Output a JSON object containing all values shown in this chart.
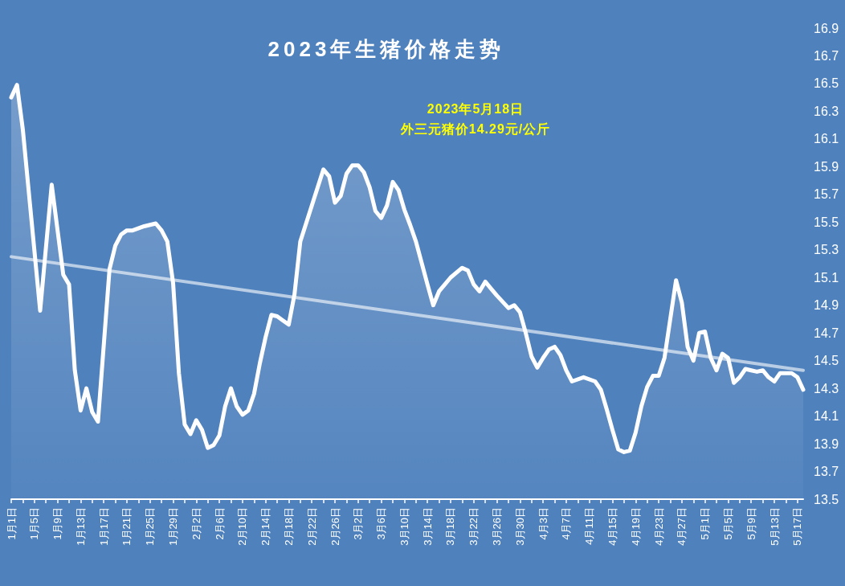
{
  "chart_data": {
    "type": "area",
    "title": "2023年生猪价格走势",
    "annotations": [
      "2023年5月18日",
      "外三元猪价14.29元/公斤"
    ],
    "series": [
      {
        "color": "#ffffff",
        "x": [
          "2023-01-01",
          "2023-01-02",
          "2023-01-03",
          "2023-01-06",
          "2023-01-08",
          "2023-01-10",
          "2023-01-11",
          "2023-01-12",
          "2023-01-13",
          "2023-01-14",
          "2023-01-15",
          "2023-01-16",
          "2023-01-18",
          "2023-01-19",
          "2023-01-20",
          "2023-01-21",
          "2023-01-22",
          "2023-01-24",
          "2023-01-26",
          "2023-01-27",
          "2023-01-28",
          "2023-01-29",
          "2023-01-30",
          "2023-01-31",
          "2023-02-01",
          "2023-02-02",
          "2023-02-03",
          "2023-02-04",
          "2023-02-05",
          "2023-02-06",
          "2023-02-07",
          "2023-02-08",
          "2023-02-09",
          "2023-02-10",
          "2023-02-11",
          "2023-02-12",
          "2023-02-13",
          "2023-02-14",
          "2023-02-15",
          "2023-02-16",
          "2023-02-17",
          "2023-02-18",
          "2023-02-19",
          "2023-02-20",
          "2023-02-24",
          "2023-02-25",
          "2023-02-26",
          "2023-02-27",
          "2023-02-28",
          "2023-03-01",
          "2023-03-02",
          "2023-03-03",
          "2023-03-04",
          "2023-03-05",
          "2023-03-06",
          "2023-03-07",
          "2023-03-08",
          "2023-03-09",
          "2023-03-10",
          "2023-03-11",
          "2023-03-12",
          "2023-03-14",
          "2023-03-15",
          "2023-03-16",
          "2023-03-17",
          "2023-03-18",
          "2023-03-20",
          "2023-03-21",
          "2023-03-22",
          "2023-03-23",
          "2023-03-24",
          "2023-03-25",
          "2023-03-26",
          "2023-03-28",
          "2023-03-29",
          "2023-03-30",
          "2023-03-31",
          "2023-04-01",
          "2023-04-02",
          "2023-04-03",
          "2023-04-04",
          "2023-04-05",
          "2023-04-06",
          "2023-04-07",
          "2023-04-08",
          "2023-04-10",
          "2023-04-12",
          "2023-04-13",
          "2023-04-14",
          "2023-04-15",
          "2023-04-16",
          "2023-04-17",
          "2023-04-18",
          "2023-04-19",
          "2023-04-20",
          "2023-04-21",
          "2023-04-22",
          "2023-04-23",
          "2023-04-24",
          "2023-04-25",
          "2023-04-26",
          "2023-04-27",
          "2023-04-28",
          "2023-04-29",
          "2023-04-30",
          "2023-05-01",
          "2023-05-02",
          "2023-05-03",
          "2023-05-04",
          "2023-05-05",
          "2023-05-06",
          "2023-05-07",
          "2023-05-08",
          "2023-05-09",
          "2023-05-10",
          "2023-05-11",
          "2023-05-12",
          "2023-05-13",
          "2023-05-14",
          "2023-05-15",
          "2023-05-16",
          "2023-05-17",
          "2023-05-18"
        ],
        "values": [
          16.4,
          16.49,
          16.17,
          14.86,
          15.77,
          15.12,
          15.05,
          14.43,
          14.14,
          14.3,
          14.13,
          14.06,
          15.16,
          15.33,
          15.41,
          15.44,
          15.44,
          15.47,
          15.49,
          15.44,
          15.36,
          15.06,
          14.41,
          14.04,
          13.97,
          14.07,
          14.0,
          13.87,
          13.89,
          13.96,
          14.17,
          14.3,
          14.17,
          14.11,
          14.14,
          14.26,
          14.48,
          14.67,
          14.83,
          14.82,
          14.79,
          14.76,
          14.98,
          15.36,
          15.88,
          15.83,
          15.64,
          15.69,
          15.85,
          15.91,
          15.91,
          15.86,
          15.75,
          15.58,
          15.53,
          15.62,
          15.79,
          15.73,
          15.59,
          15.48,
          15.36,
          15.05,
          14.9,
          15.0,
          15.05,
          15.1,
          15.17,
          15.15,
          15.05,
          15.0,
          15.07,
          15.02,
          14.97,
          14.88,
          14.9,
          14.85,
          14.7,
          14.53,
          14.45,
          14.52,
          14.58,
          14.6,
          14.54,
          14.43,
          14.35,
          14.38,
          14.35,
          14.29,
          14.15,
          14.0,
          13.86,
          13.84,
          13.85,
          13.98,
          14.17,
          14.31,
          14.39,
          14.39,
          14.52,
          14.8,
          15.08,
          14.92,
          14.6,
          14.5,
          14.7,
          14.71,
          14.52,
          14.43,
          14.55,
          14.52,
          14.34,
          14.38,
          14.44,
          14.43,
          14.42,
          14.43,
          14.38,
          14.35,
          14.41,
          14.41,
          14.41,
          14.38,
          14.29
        ]
      },
      {
        "type": "line",
        "color": "#b9cde5",
        "x": [
          "2023-01-01",
          "2023-05-18"
        ],
        "values": [
          15.25,
          14.43
        ]
      }
    ],
    "xlim": [
      "2023-01-01",
      "2023-05-18"
    ],
    "xticks": [
      {
        "value": "2023-01-01",
        "label": "1月1日"
      },
      {
        "value": "2023-01-03",
        "label": null
      },
      {
        "value": "2023-01-05",
        "label": "1月5日"
      },
      {
        "value": "2023-01-07",
        "label": null
      },
      {
        "value": "2023-01-09",
        "label": "1月9日"
      },
      {
        "value": "2023-01-11",
        "label": null
      },
      {
        "value": "2023-01-13",
        "label": "1月13日"
      },
      {
        "value": "2023-01-15",
        "label": null
      },
      {
        "value": "2023-01-17",
        "label": "1月17日"
      },
      {
        "value": "2023-01-19",
        "label": null
      },
      {
        "value": "2023-01-21",
        "label": "1月21日"
      },
      {
        "value": "2023-01-23",
        "label": null
      },
      {
        "value": "2023-01-25",
        "label": "1月25日"
      },
      {
        "value": "2023-01-27",
        "label": null
      },
      {
        "value": "2023-01-29",
        "label": "1月29日"
      },
      {
        "value": "2023-01-31",
        "label": null
      },
      {
        "value": "2023-02-02",
        "label": "2月2日"
      },
      {
        "value": "2023-02-04",
        "label": null
      },
      {
        "value": "2023-02-06",
        "label": "2月6日"
      },
      {
        "value": "2023-02-08",
        "label": null
      },
      {
        "value": "2023-02-10",
        "label": "2月10日"
      },
      {
        "value": "2023-02-12",
        "label": null
      },
      {
        "value": "2023-02-14",
        "label": "2月14日"
      },
      {
        "value": "2023-02-16",
        "label": null
      },
      {
        "value": "2023-02-18",
        "label": "2月18日"
      },
      {
        "value": "2023-02-20",
        "label": null
      },
      {
        "value": "2023-02-22",
        "label": "2月22日"
      },
      {
        "value": "2023-02-24",
        "label": null
      },
      {
        "value": "2023-02-26",
        "label": "2月26日"
      },
      {
        "value": "2023-02-28",
        "label": null
      },
      {
        "value": "2023-03-02",
        "label": "3月2日"
      },
      {
        "value": "2023-03-04",
        "label": null
      },
      {
        "value": "2023-03-06",
        "label": "3月6日"
      },
      {
        "value": "2023-03-08",
        "label": null
      },
      {
        "value": "2023-03-10",
        "label": "3月10日"
      },
      {
        "value": "2023-03-12",
        "label": null
      },
      {
        "value": "2023-03-14",
        "label": "3月14日"
      },
      {
        "value": "2023-03-16",
        "label": null
      },
      {
        "value": "2023-03-18",
        "label": "3月18日"
      },
      {
        "value": "2023-03-20",
        "label": null
      },
      {
        "value": "2023-03-22",
        "label": "3月22日"
      },
      {
        "value": "2023-03-24",
        "label": null
      },
      {
        "value": "2023-03-26",
        "label": "3月26日"
      },
      {
        "value": "2023-03-28",
        "label": null
      },
      {
        "value": "2023-03-30",
        "label": "3月30日"
      },
      {
        "value": "2023-04-01",
        "label": null
      },
      {
        "value": "2023-04-03",
        "label": "4月3日"
      },
      {
        "value": "2023-04-05",
        "label": null
      },
      {
        "value": "2023-04-07",
        "label": "4月7日"
      },
      {
        "value": "2023-04-09",
        "label": null
      },
      {
        "value": "2023-04-11",
        "label": "4月11日"
      },
      {
        "value": "2023-04-13",
        "label": null
      },
      {
        "value": "2023-04-15",
        "label": "4月15日"
      },
      {
        "value": "2023-04-17",
        "label": null
      },
      {
        "value": "2023-04-19",
        "label": "4月19日"
      },
      {
        "value": "2023-04-21",
        "label": null
      },
      {
        "value": "2023-04-23",
        "label": "4月23日"
      },
      {
        "value": "2023-04-25",
        "label": null
      },
      {
        "value": "2023-04-27",
        "label": "4月27日"
      },
      {
        "value": "2023-04-29",
        "label": null
      },
      {
        "value": "2023-05-01",
        "label": "5月1日"
      },
      {
        "value": "2023-05-03",
        "label": null
      },
      {
        "value": "2023-05-05",
        "label": "5月5日"
      },
      {
        "value": "2023-05-07",
        "label": null
      },
      {
        "value": "2023-05-09",
        "label": "5月9日"
      },
      {
        "value": "2023-05-11",
        "label": null
      },
      {
        "value": "2023-05-13",
        "label": "5月13日"
      },
      {
        "value": "2023-05-15",
        "label": null
      },
      {
        "value": "2023-05-17",
        "label": "5月17日"
      }
    ],
    "ylim": [
      13.5,
      16.9
    ],
    "yticks": [
      13.5,
      13.7,
      13.9,
      14.1,
      14.3,
      14.5,
      14.7,
      14.9,
      15.1,
      15.3,
      15.5,
      15.7,
      15.9,
      16.1,
      16.3,
      16.5,
      16.7,
      16.9
    ],
    "grid": false,
    "marker": "none"
  }
}
